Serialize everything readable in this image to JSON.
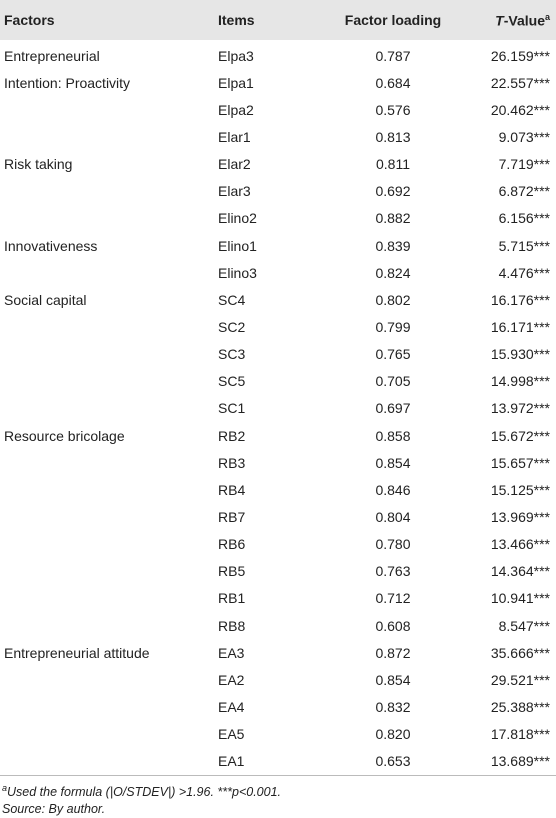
{
  "table": {
    "header": [
      "Factors",
      "Items",
      "Factor loading",
      {
        "italic": "T",
        "text": "-Value",
        "sup": "a"
      }
    ],
    "rows": [
      [
        "Entrepreneurial",
        "Elpa3",
        "0.787",
        "26.159***"
      ],
      [
        "Intention: Proactivity",
        "Elpa1",
        "0.684",
        "22.557***"
      ],
      [
        null,
        "Elpa2",
        "0.576",
        "20.462***"
      ],
      [
        null,
        "Elar1",
        "0.813",
        "9.073***"
      ],
      [
        "Risk taking",
        "Elar2",
        "0.811",
        "7.719***"
      ],
      [
        null,
        "Elar3",
        "0.692",
        "6.872***"
      ],
      [
        null,
        "Elino2",
        "0.882",
        "6.156***"
      ],
      [
        "Innovativeness",
        "Elino1",
        "0.839",
        "5.715***"
      ],
      [
        null,
        "Elino3",
        "0.824",
        "4.476***"
      ],
      [
        "Social capital",
        "SC4",
        "0.802",
        "16.176***"
      ],
      [
        null,
        "SC2",
        "0.799",
        "16.171***"
      ],
      [
        null,
        "SC3",
        "0.765",
        "15.930***"
      ],
      [
        null,
        "SC5",
        "0.705",
        "14.998***"
      ],
      [
        null,
        "SC1",
        "0.697",
        "13.972***"
      ],
      [
        "Resource bricolage",
        "RB2",
        "0.858",
        "15.672***"
      ],
      [
        null,
        "RB3",
        "0.854",
        "15.657***"
      ],
      [
        null,
        "RB4",
        "0.846",
        "15.125***"
      ],
      [
        null,
        "RB7",
        "0.804",
        "13.969***"
      ],
      [
        null,
        "RB6",
        "0.780",
        "13.466***"
      ],
      [
        null,
        "RB5",
        "0.763",
        "14.364***"
      ],
      [
        null,
        "RB1",
        "0.712",
        "10.941***"
      ],
      [
        null,
        "RB8",
        "0.608",
        "8.547***"
      ],
      [
        "Entrepreneurial attitude",
        "EA3",
        "0.872",
        "35.666***"
      ],
      [
        null,
        "EA2",
        "0.854",
        "29.521***"
      ],
      [
        null,
        "EA4",
        "0.832",
        "25.388***"
      ],
      [
        null,
        "EA5",
        "0.820",
        "17.818***"
      ],
      [
        null,
        "EA1",
        "0.653",
        "13.689***"
      ]
    ]
  },
  "footnotes": [
    {
      "sup": "a",
      "text": "Used the formula (|O/STDEV|) >1.96. ***p<0.001."
    },
    {
      "text": "Source: By author."
    }
  ]
}
